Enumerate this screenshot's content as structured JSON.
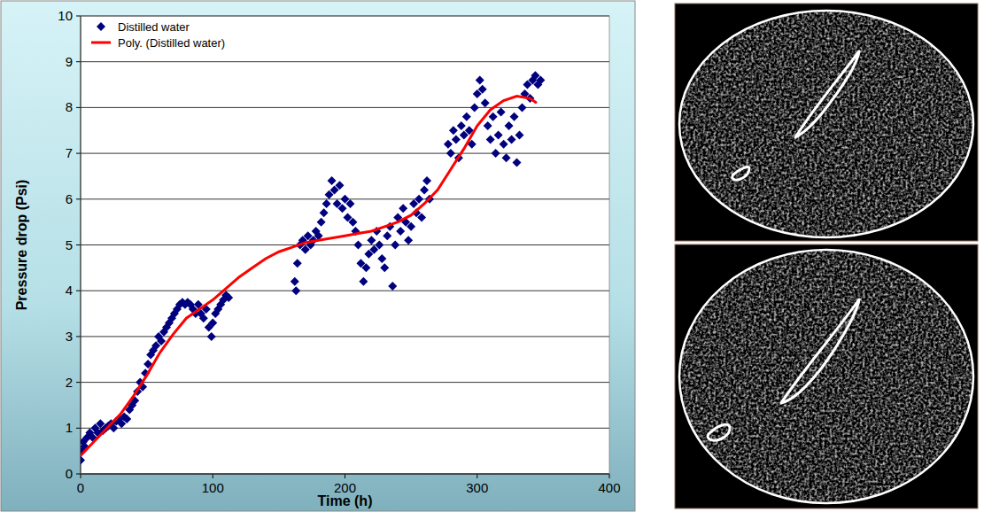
{
  "chart_data": {
    "type": "scatter",
    "x_label": "Time (h)",
    "y_label": "Pressure drop (Psi)",
    "xlim": [
      0,
      400
    ],
    "ylim": [
      0,
      10
    ],
    "xticks": [
      0,
      100,
      200,
      300,
      400
    ],
    "yticks": [
      0,
      1,
      2,
      3,
      4,
      5,
      6,
      7,
      8,
      9,
      10
    ],
    "grid": "y",
    "legend": "upper left",
    "series": [
      {
        "name": "Distilled water",
        "type": "scatter",
        "color": "#00007f",
        "marker": "diamond",
        "x": [
          0,
          1,
          2,
          3,
          5,
          7,
          9,
          11,
          13,
          15,
          17,
          19,
          21,
          23,
          25,
          27,
          29,
          31,
          33,
          35,
          37,
          39,
          41,
          43,
          45,
          47,
          49,
          51,
          53,
          55,
          57,
          59,
          61,
          63,
          65,
          67,
          69,
          71,
          73,
          75,
          77,
          79,
          81,
          83,
          85,
          87,
          89,
          91,
          93,
          95,
          97,
          99,
          100,
          102,
          104,
          106,
          108,
          110,
          112,
          162,
          163,
          164,
          166,
          168,
          170,
          172,
          174,
          176,
          178,
          180,
          182,
          184,
          186,
          188,
          190,
          192,
          194,
          196,
          198,
          200,
          202,
          204,
          206,
          208,
          210,
          212,
          214,
          216,
          218,
          220,
          222,
          224,
          226,
          228,
          230,
          232,
          234,
          236,
          238,
          240,
          242,
          244,
          246,
          248,
          250,
          252,
          254,
          256,
          258,
          260,
          262,
          264,
          278,
          280,
          282,
          284,
          286,
          288,
          290,
          292,
          294,
          296,
          298,
          300,
          302,
          304,
          306,
          308,
          310,
          312,
          314,
          316,
          318,
          320,
          322,
          324,
          326,
          328,
          330,
          332,
          334,
          336,
          338,
          340,
          342,
          344,
          346,
          348
        ],
        "values": [
          0.3,
          0.5,
          0.7,
          0.6,
          0.8,
          0.9,
          0.8,
          1.0,
          0.9,
          1.1,
          0.95,
          1.0,
          1.05,
          1.1,
          1.0,
          1.15,
          1.2,
          1.1,
          1.25,
          1.2,
          1.4,
          1.5,
          1.6,
          1.8,
          2.0,
          1.9,
          2.2,
          2.4,
          2.6,
          2.7,
          2.8,
          3.0,
          2.9,
          3.1,
          3.2,
          3.3,
          3.4,
          3.5,
          3.6,
          3.7,
          3.75,
          3.7,
          3.75,
          3.7,
          3.6,
          3.5,
          3.7,
          3.5,
          3.4,
          3.6,
          3.2,
          3.0,
          3.3,
          3.5,
          3.6,
          3.7,
          3.8,
          3.9,
          3.85,
          4.2,
          4.0,
          4.6,
          5.0,
          5.1,
          4.9,
          5.2,
          5.0,
          5.1,
          5.3,
          5.2,
          5.5,
          5.7,
          5.9,
          6.1,
          6.4,
          6.2,
          5.9,
          6.3,
          5.8,
          6.0,
          5.6,
          5.9,
          5.5,
          5.3,
          5.0,
          4.6,
          4.2,
          4.5,
          4.8,
          5.1,
          4.9,
          5.3,
          5.0,
          4.7,
          4.5,
          5.2,
          5.4,
          4.1,
          5.0,
          5.6,
          5.3,
          5.8,
          5.5,
          5.1,
          5.4,
          5.9,
          5.7,
          6.0,
          5.6,
          6.2,
          6.4,
          6.0,
          7.2,
          7.0,
          7.5,
          7.3,
          6.9,
          7.6,
          7.4,
          7.8,
          7.5,
          7.2,
          8.0,
          8.3,
          8.6,
          8.4,
          8.1,
          7.6,
          7.3,
          7.8,
          7.0,
          7.4,
          7.9,
          7.2,
          6.9,
          7.6,
          7.3,
          7.8,
          6.8,
          7.4,
          8.0,
          8.3,
          8.5,
          8.2,
          8.6,
          8.7,
          8.5,
          8.6
        ]
      },
      {
        "name": "Poly. (Distilled water)",
        "type": "line",
        "color": "#ff0000",
        "line_style": "solid",
        "x": [
          0,
          10,
          20,
          30,
          40,
          50,
          60,
          70,
          80,
          90,
          100,
          110,
          120,
          130,
          140,
          150,
          160,
          170,
          180,
          190,
          200,
          210,
          220,
          230,
          240,
          250,
          260,
          270,
          280,
          290,
          300,
          310,
          320,
          330,
          340,
          345
        ],
        "values": [
          0.4,
          0.7,
          1.0,
          1.3,
          1.7,
          2.15,
          2.65,
          3.05,
          3.4,
          3.6,
          3.8,
          4.05,
          4.3,
          4.5,
          4.7,
          4.85,
          4.95,
          5.05,
          5.1,
          5.15,
          5.2,
          5.25,
          5.3,
          5.4,
          5.5,
          5.65,
          5.9,
          6.2,
          6.65,
          7.1,
          7.6,
          7.95,
          8.15,
          8.25,
          8.2,
          8.1
        ]
      }
    ]
  }
}
